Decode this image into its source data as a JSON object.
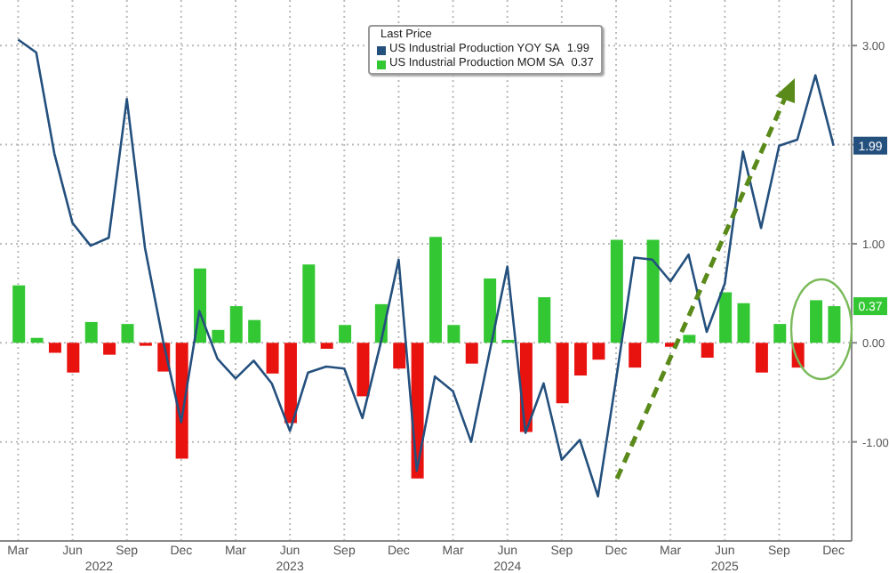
{
  "chart_data": {
    "type": "bar",
    "legend_title": "Last Price",
    "x": [
      "2022-03",
      "2022-04",
      "2022-05",
      "2022-06",
      "2022-07",
      "2022-08",
      "2022-09",
      "2022-10",
      "2022-11",
      "2022-12",
      "2023-01",
      "2023-02",
      "2023-03",
      "2023-04",
      "2023-05",
      "2023-06",
      "2023-07",
      "2023-08",
      "2023-09",
      "2023-10",
      "2023-11",
      "2023-12",
      "2024-01",
      "2024-02",
      "2024-03",
      "2024-04",
      "2024-05",
      "2024-06",
      "2024-07",
      "2024-08",
      "2024-09",
      "2024-10",
      "2024-11",
      "2024-12",
      "2025-01",
      "2025-02",
      "2025-03",
      "2025-04",
      "2025-05",
      "2025-06",
      "2025-07",
      "2025-08",
      "2025-09",
      "2025-10",
      "2025-11",
      "2025-12"
    ],
    "series": [
      {
        "name": "US Industrial Production YOY SA",
        "type": "line",
        "color": "#24507e",
        "values": [
          3.06,
          2.93,
          1.91,
          1.21,
          0.98,
          1.06,
          2.46,
          0.96,
          0.02,
          -0.8,
          0.32,
          -0.16,
          -0.36,
          -0.18,
          -0.41,
          -0.89,
          -0.3,
          -0.24,
          -0.26,
          -0.76,
          -0.01,
          0.84,
          -1.29,
          -0.34,
          -0.49,
          -1.0,
          -0.11,
          0.77,
          -0.91,
          -0.41,
          -1.18,
          -0.98,
          -1.55,
          -0.37,
          0.86,
          0.84,
          0.62,
          0.89,
          0.11,
          0.6,
          1.93,
          1.16,
          1.99,
          2.05,
          2.7,
          1.99
        ]
      },
      {
        "name": "US Industrial Production MOM SA",
        "color": "#33c733",
        "colors": [
          "#33c733",
          "#33c733",
          "#e8120f",
          "#e8120f",
          "#33c733",
          "#e8120f",
          "#33c733",
          "#e8120f",
          "#e8120f",
          "#e8120f",
          "#33c733",
          "#33c733",
          "#33c733",
          "#33c733",
          "#e8120f",
          "#e8120f",
          "#33c733",
          "#e8120f",
          "#33c733",
          "#e8120f",
          "#33c733",
          "#e8120f",
          "#e8120f",
          "#33c733",
          "#33c733",
          "#e8120f",
          "#33c733",
          "#33c733",
          "#e8120f",
          "#33c733",
          "#e8120f",
          "#e8120f",
          "#e8120f",
          "#33c733",
          "#e8120f",
          "#33c733",
          "#e8120f",
          "#33c733",
          "#e8120f",
          "#33c733",
          "#33c733",
          "#e8120f",
          "#33c733",
          "#e8120f",
          "#33c733",
          "#33c733"
        ],
        "values": [
          0.58,
          0.05,
          -0.1,
          -0.3,
          0.21,
          -0.12,
          0.19,
          -0.03,
          -0.29,
          -1.17,
          0.75,
          0.13,
          0.37,
          0.23,
          -0.31,
          -0.81,
          0.79,
          -0.06,
          0.18,
          -0.54,
          0.39,
          -0.26,
          -1.37,
          1.07,
          0.18,
          -0.21,
          0.65,
          0.03,
          -0.9,
          0.46,
          -0.61,
          -0.33,
          -0.17,
          1.04,
          -0.25,
          1.04,
          -0.04,
          0.08,
          -0.15,
          0.51,
          0.4,
          -0.3,
          0.19,
          -0.25,
          0.43,
          0.37
        ]
      }
    ],
    "annotations": [
      {
        "text": "1.99",
        "x": "2025-12",
        "y": 1.99
      },
      {
        "text": "0.37",
        "x": "2025-12",
        "y": 0.37
      }
    ],
    "xlim": [
      "2022-02",
      "2026-01"
    ],
    "xticks": [
      {
        "value": "2022-03",
        "label": "Mar"
      },
      {
        "value": "2022-06",
        "label": "Jun"
      },
      {
        "value": "2022-09",
        "label": "Sep"
      },
      {
        "value": "2022-12",
        "label": "Dec"
      },
      {
        "value": "2023-03",
        "label": "Mar"
      },
      {
        "value": "2023-06",
        "label": "Jun"
      },
      {
        "value": "2023-09",
        "label": "Sep"
      },
      {
        "value": "2023-12",
        "label": "Dec"
      },
      {
        "value": "2024-03",
        "label": "Mar"
      },
      {
        "value": "2024-06",
        "label": "Jun"
      },
      {
        "value": "2024-09",
        "label": "Sep"
      },
      {
        "value": "2024-12",
        "label": "Dec"
      },
      {
        "value": "2025-03",
        "label": "Mar"
      },
      {
        "value": "2025-06",
        "label": "Jun"
      },
      {
        "value": "2025-09",
        "label": "Sep"
      },
      {
        "value": "2025-12",
        "label": "Dec"
      }
    ],
    "x2lim": [
      "2022-02",
      "2026-01"
    ],
    "x2ticks": [
      {
        "value": "2022-07-15",
        "label": "2022"
      },
      {
        "value": "2023-06",
        "label": "2023"
      },
      {
        "value": "2024-06",
        "label": "2024"
      },
      {
        "value": "2025-06",
        "label": "2025"
      }
    ],
    "ylim": [
      -2,
      3.46
    ],
    "yticks": [
      {
        "value": 3,
        "label": "3.00"
      },
      {
        "value": 2,
        "label": null
      },
      {
        "value": 1,
        "label": "1.00"
      },
      {
        "value": 0,
        "label": "0.00"
      },
      {
        "value": -1,
        "label": "-1.00"
      }
    ],
    "grid": true,
    "legend": "top",
    "marker": "none",
    "line_style": "solid"
  }
}
